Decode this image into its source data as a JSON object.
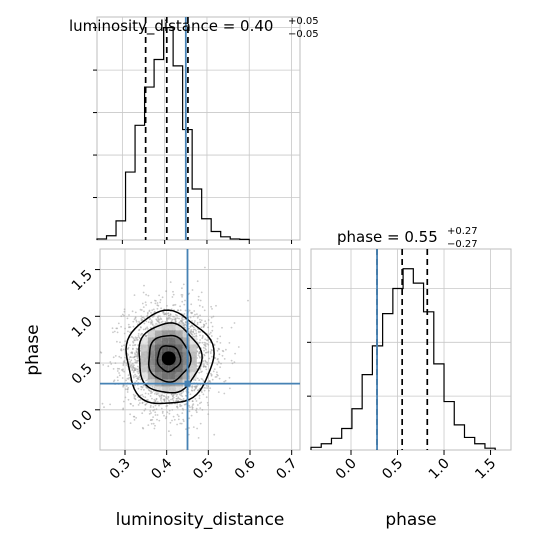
{
  "chart_data": {
    "type": "corner",
    "parameters": [
      "luminosity_distance",
      "phase"
    ],
    "truths": {
      "luminosity_distance": 0.45,
      "phase": 0.28
    },
    "panels": [
      {
        "type": "histogram",
        "parameter": "luminosity_distance",
        "title_main": "luminosity_distance = 0.40",
        "title_upper": "+0.05",
        "title_lower": "−0.05",
        "quantiles": [
          0.355,
          0.405,
          0.455
        ],
        "xlim": [
          0.24,
          0.72
        ],
        "bin_edges": [
          0.24,
          0.2625,
          0.285,
          0.3075,
          0.33,
          0.3525,
          0.375,
          0.3975,
          0.42,
          0.4425,
          0.465,
          0.4875,
          0.51,
          0.5325,
          0.555,
          0.5775,
          0.6
        ],
        "counts": [
          0.5,
          2,
          9,
          32,
          54,
          72,
          85,
          100,
          82,
          52,
          24,
          10,
          4,
          1.5,
          0.5,
          0.3
        ],
        "ylim": [
          0,
          105
        ]
      },
      {
        "type": "histogram",
        "parameter": "phase",
        "title_main": "phase = 0.55",
        "title_upper": "+0.27",
        "title_lower": "−0.27",
        "quantiles": [
          0.28,
          0.55,
          0.82
        ],
        "xlim": [
          -0.43,
          1.72
        ],
        "bin_edges": [
          -0.43,
          -0.32,
          -0.21,
          -0.1,
          0.01,
          0.12,
          0.23,
          0.34,
          0.45,
          0.56,
          0.67,
          0.78,
          0.89,
          1.0,
          1.11,
          1.22,
          1.33,
          1.44,
          1.55
        ],
        "counts": [
          1.5,
          3.5,
          6.5,
          12,
          23,
          42,
          58,
          76,
          90,
          101,
          93,
          77,
          48,
          27,
          14,
          7,
          3.5,
          1
        ],
        "ylim": [
          0,
          112
        ]
      },
      {
        "type": "2d-density",
        "x": "luminosity_distance",
        "y": "phase",
        "xlim": [
          0.24,
          0.72
        ],
        "ylim": [
          -0.43,
          1.72
        ],
        "center": [
          0.405,
          0.55
        ],
        "spread": [
          0.05,
          0.27
        ]
      }
    ],
    "x_ticks": {
      "luminosity_distance": [
        0.3,
        0.4,
        0.5,
        0.6,
        0.7
      ],
      "phase": [
        0.0,
        0.5,
        1.0,
        1.5
      ]
    },
    "y_ticks": {
      "phase": [
        0.0,
        0.5,
        1.0,
        1.5
      ]
    },
    "x_tick_labels": {
      "luminosity_distance": [
        "0.3",
        "0.4",
        "0.5",
        "0.6",
        "0.7"
      ],
      "phase": [
        "0.0",
        "0.5",
        "1.0",
        "1.5"
      ]
    },
    "y_tick_labels": {
      "phase": [
        "0.0",
        "0.5",
        "1.0",
        "1.5"
      ]
    },
    "xlabels": [
      "luminosity_distance",
      "phase"
    ],
    "ylabel": "phase",
    "grid": true,
    "colors": {
      "truth": "#4682b4",
      "hist": "#000000",
      "points": "#9e9e9e"
    }
  }
}
